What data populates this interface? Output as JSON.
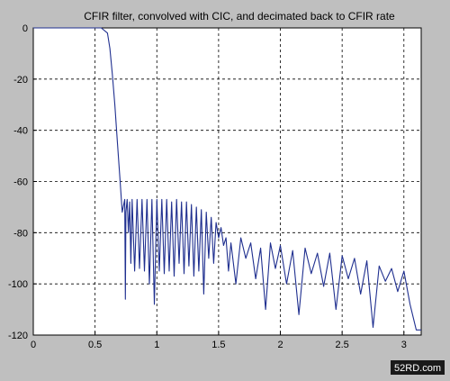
{
  "chart_data": {
    "type": "line",
    "title": "CFIR filter, convolved with CIC, and decimated back to CFIR rate",
    "xlabel": "",
    "ylabel": "",
    "xlim": [
      0,
      3.14
    ],
    "ylim": [
      -120,
      0
    ],
    "x_ticks": [
      0,
      0.5,
      1,
      1.5,
      2,
      2.5,
      3
    ],
    "x_tick_labels": [
      "0",
      "0.5",
      "1",
      "1.5",
      "2",
      "2.5",
      "3"
    ],
    "y_ticks": [
      0,
      -20,
      -40,
      -60,
      -80,
      -100,
      -120
    ],
    "y_tick_labels": [
      "0",
      "-20",
      "-40",
      "-60",
      "-80",
      "-100",
      "-120"
    ],
    "grid": true,
    "grid_style": "dashed",
    "line_color": "#1f2f8f",
    "series": [
      {
        "x": [
          0,
          0.55,
          0.6,
          0.62,
          0.64,
          0.66,
          0.68,
          0.7,
          0.72,
          0.74,
          0.745,
          0.75,
          0.76,
          0.77,
          0.78,
          0.79,
          0.8,
          0.82,
          0.84,
          0.86,
          0.88,
          0.9,
          0.92,
          0.94,
          0.96,
          0.98,
          1.0,
          1.02,
          1.04,
          1.06,
          1.08,
          1.1,
          1.12,
          1.14,
          1.16,
          1.18,
          1.2,
          1.22,
          1.24,
          1.26,
          1.28,
          1.3,
          1.32,
          1.34,
          1.36,
          1.38,
          1.4,
          1.42,
          1.44,
          1.46,
          1.48,
          1.5,
          1.52,
          1.54,
          1.56,
          1.58,
          1.6,
          1.64,
          1.68,
          1.72,
          1.76,
          1.8,
          1.84,
          1.88,
          1.92,
          1.96,
          2.0,
          2.05,
          2.1,
          2.15,
          2.2,
          2.25,
          2.3,
          2.35,
          2.4,
          2.45,
          2.5,
          2.55,
          2.6,
          2.65,
          2.7,
          2.75,
          2.8,
          2.85,
          2.9,
          2.95,
          3.0,
          3.05,
          3.1,
          3.14
        ],
        "y": [
          0,
          0,
          -2,
          -8,
          -18,
          -30,
          -44,
          -58,
          -72,
          -67,
          -106,
          -72,
          -67,
          -80,
          -68,
          -92,
          -67,
          -95,
          -67,
          -94,
          -67,
          -95,
          -67,
          -100,
          -67,
          -108,
          -67,
          -95,
          -67,
          -96,
          -67,
          -95,
          -68,
          -97,
          -67,
          -92,
          -68,
          -96,
          -68,
          -93,
          -69,
          -97,
          -70,
          -95,
          -71,
          -104,
          -72,
          -90,
          -74,
          -92,
          -76,
          -82,
          -78,
          -85,
          -82,
          -95,
          -84,
          -100,
          -82,
          -90,
          -84,
          -98,
          -86,
          -110,
          -84,
          -94,
          -85,
          -100,
          -87,
          -112,
          -86,
          -96,
          -88,
          -101,
          -88,
          -110,
          -89,
          -98,
          -90,
          -104,
          -91,
          -117,
          -93,
          -99,
          -94,
          -103,
          -95,
          -108,
          -118,
          -118
        ]
      }
    ]
  },
  "watermark": "52RD.com"
}
